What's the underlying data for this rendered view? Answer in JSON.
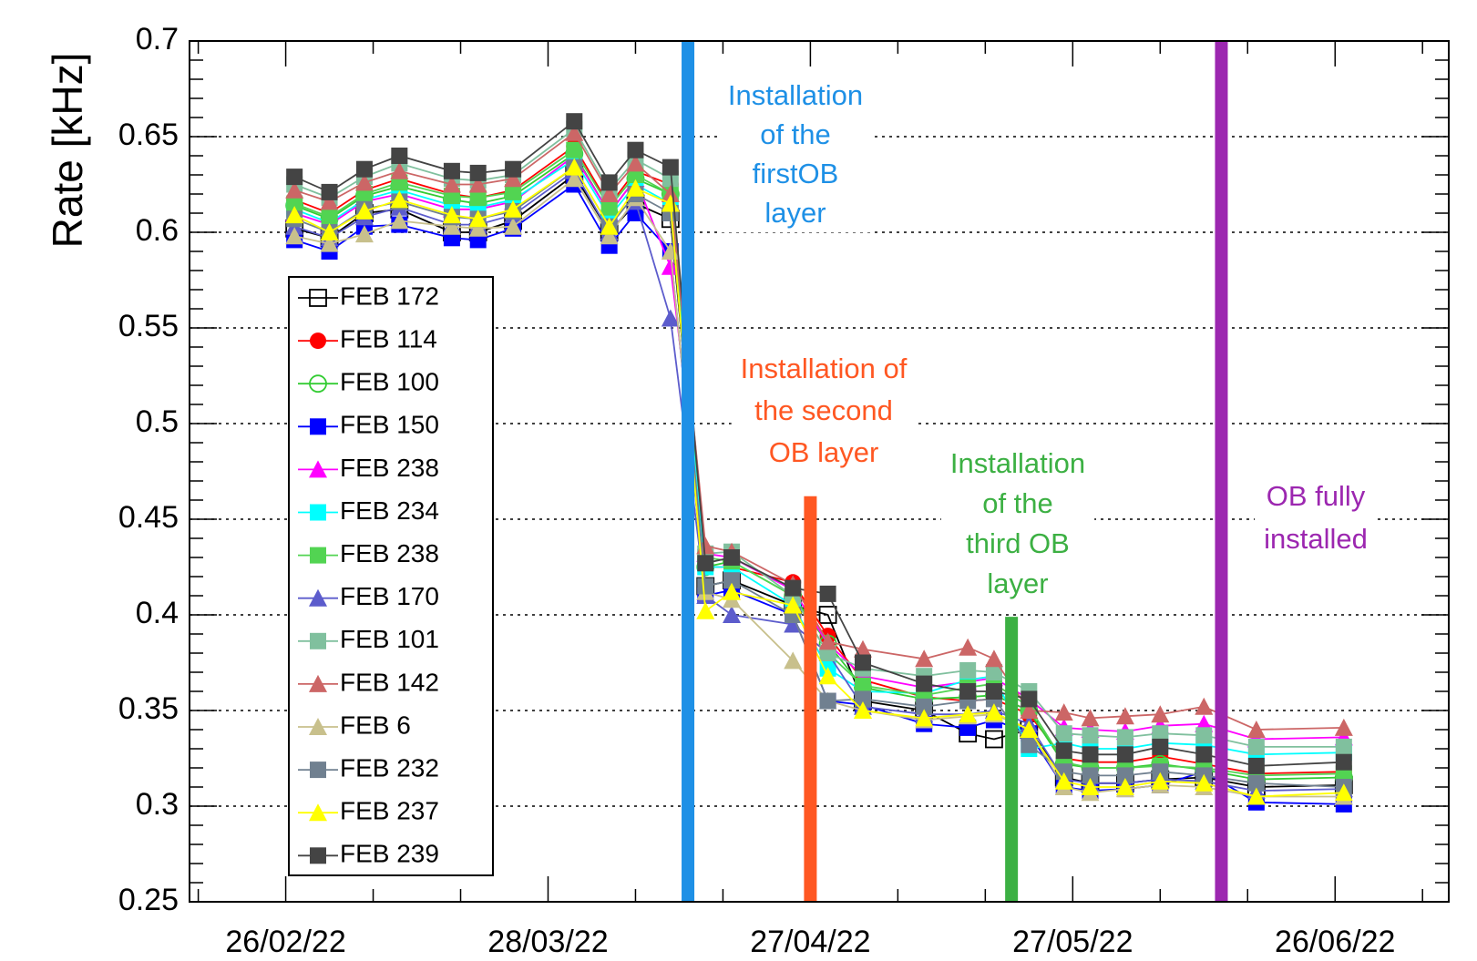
{
  "chart_data": {
    "type": "line",
    "ylabel": "Rate [kHz]",
    "ylim": [
      0.25,
      0.7
    ],
    "yticks": [
      0.25,
      0.3,
      0.35,
      0.4,
      0.45,
      0.5,
      0.55,
      0.6,
      0.65,
      0.7
    ],
    "yminorticks": [
      0.26,
      0.27,
      0.28,
      0.29,
      0.31,
      0.32,
      0.33,
      0.34,
      0.36,
      0.37,
      0.38,
      0.39,
      0.41,
      0.42,
      0.43,
      0.44,
      0.46,
      0.47,
      0.48,
      0.49,
      0.51,
      0.52,
      0.53,
      0.54,
      0.56,
      0.57,
      0.58,
      0.59,
      0.61,
      0.62,
      0.63,
      0.64,
      0.66,
      0.67,
      0.68,
      0.69
    ],
    "xlim": [
      "15/02/22",
      "09/07/22"
    ],
    "xticks": [
      "26/02/22",
      "28/03/22",
      "27/04/22",
      "27/05/22",
      "26/06/22"
    ],
    "xminorticks": [
      "16/02/22",
      "08/03/22",
      "18/03/22",
      "07/04/22",
      "17/04/22",
      "07/05/22",
      "17/05/22",
      "06/06/22",
      "16/06/22",
      "06/07/22"
    ],
    "grid": true,
    "legend": "upper left",
    "x": [
      "27/02/22",
      "03/03/22",
      "07/03/22",
      "11/03/22",
      "17/03/22",
      "20/03/22",
      "24/03/22",
      "31/03/22",
      "04/04/22",
      "07/04/22",
      "11/04/22",
      "15/04/22",
      "18/04/22",
      "25/04/22",
      "29/04/22",
      "03/05/22",
      "10/05/22",
      "15/05/22",
      "18/05/22",
      "22/05/22",
      "26/05/22",
      "29/05/22",
      "02/06/22",
      "06/06/22",
      "11/06/22",
      "17/06/22",
      "27/06/22"
    ],
    "series": [
      {
        "name": "FEB 172",
        "color": "#000000",
        "marker": "open-square",
        "values": [
          0.602,
          0.597,
          0.61,
          0.612,
          0.6,
          0.6,
          0.606,
          0.63,
          0.6,
          0.615,
          0.607,
          0.415,
          0.418,
          0.405,
          0.4,
          0.355,
          0.35,
          0.338,
          0.335,
          0.34,
          0.315,
          0.312,
          0.312,
          0.314,
          0.315,
          0.31,
          0.311
        ]
      },
      {
        "name": "FEB 114",
        "color": "#ff0000",
        "marker": "circle",
        "values": [
          0.617,
          0.61,
          0.622,
          0.628,
          0.62,
          0.618,
          0.622,
          0.645,
          0.614,
          0.632,
          0.625,
          0.425,
          0.425,
          0.417,
          0.389,
          0.366,
          0.357,
          0.355,
          0.356,
          0.348,
          0.325,
          0.323,
          0.323,
          0.326,
          0.322,
          0.317,
          0.318
        ]
      },
      {
        "name": "FEB 100",
        "color": "#33cc33",
        "marker": "open-circle",
        "values": [
          0.614,
          0.607,
          0.619,
          0.624,
          0.617,
          0.615,
          0.619,
          0.641,
          0.61,
          0.628,
          0.62,
          0.425,
          0.428,
          0.41,
          0.385,
          0.362,
          0.356,
          0.357,
          0.358,
          0.35,
          0.322,
          0.32,
          0.32,
          0.322,
          0.319,
          0.314,
          0.315
        ]
      },
      {
        "name": "FEB 150",
        "color": "#0000ff",
        "marker": "square",
        "values": [
          0.596,
          0.59,
          0.603,
          0.604,
          0.597,
          0.596,
          0.602,
          0.625,
          0.593,
          0.61,
          0.59,
          0.41,
          0.413,
          0.4,
          0.355,
          0.353,
          0.343,
          0.341,
          0.345,
          0.338,
          0.31,
          0.308,
          0.309,
          0.311,
          0.318,
          0.302,
          0.301
        ]
      },
      {
        "name": "FEB 238",
        "color": "#ff00ff",
        "marker": "triangle",
        "values": [
          0.61,
          0.604,
          0.616,
          0.62,
          0.612,
          0.612,
          0.616,
          0.64,
          0.61,
          0.628,
          0.582,
          0.432,
          0.43,
          0.413,
          0.385,
          0.368,
          0.362,
          0.365,
          0.367,
          0.356,
          0.341,
          0.34,
          0.339,
          0.342,
          0.343,
          0.335,
          0.336
        ]
      },
      {
        "name": "FEB 234",
        "color": "#00ffff",
        "marker": "square",
        "values": [
          0.612,
          0.605,
          0.617,
          0.622,
          0.614,
          0.613,
          0.617,
          0.638,
          0.608,
          0.625,
          0.615,
          0.425,
          0.425,
          0.405,
          0.372,
          0.36,
          0.359,
          0.366,
          0.368,
          0.33,
          0.333,
          0.33,
          0.33,
          0.333,
          0.332,
          0.327,
          0.328
        ]
      },
      {
        "name": "FEB 238",
        "color": "#52d452",
        "marker": "square",
        "values": [
          0.615,
          0.608,
          0.62,
          0.626,
          0.619,
          0.618,
          0.621,
          0.643,
          0.613,
          0.63,
          0.62,
          0.43,
          0.428,
          0.41,
          0.38,
          0.363,
          0.358,
          0.362,
          0.364,
          0.352,
          0.323,
          0.32,
          0.32,
          0.321,
          0.32,
          0.316,
          0.317
        ]
      },
      {
        "name": "FEB 170",
        "color": "#5c5ccc",
        "marker": "triangle",
        "values": [
          0.603,
          0.597,
          0.608,
          0.613,
          0.604,
          0.604,
          0.609,
          0.632,
          0.6,
          0.616,
          0.555,
          0.41,
          0.4,
          0.395,
          0.38,
          0.352,
          0.348,
          0.348,
          0.35,
          0.343,
          0.314,
          0.312,
          0.312,
          0.314,
          0.313,
          0.308,
          0.309
        ]
      },
      {
        "name": "FEB 101",
        "color": "#80c09e",
        "marker": "square",
        "values": [
          0.625,
          0.618,
          0.629,
          0.636,
          0.628,
          0.627,
          0.63,
          0.654,
          0.622,
          0.638,
          0.628,
          0.432,
          0.433,
          0.41,
          0.38,
          0.372,
          0.368,
          0.371,
          0.37,
          0.36,
          0.338,
          0.337,
          0.336,
          0.338,
          0.337,
          0.331,
          0.331
        ]
      },
      {
        "name": "FEB 142",
        "color": "#cc6666",
        "marker": "triangle",
        "values": [
          0.622,
          0.616,
          0.626,
          0.632,
          0.625,
          0.625,
          0.628,
          0.652,
          0.62,
          0.636,
          0.62,
          0.436,
          0.433,
          0.416,
          0.386,
          0.382,
          0.377,
          0.383,
          0.377,
          0.35,
          0.349,
          0.346,
          0.347,
          0.348,
          0.352,
          0.34,
          0.341
        ]
      },
      {
        "name": "FEB 6",
        "color": "#c8c08c",
        "marker": "triangle",
        "values": [
          0.598,
          0.594,
          0.599,
          0.606,
          0.603,
          0.602,
          0.603,
          0.628,
          0.598,
          0.618,
          0.59,
          0.412,
          0.408,
          0.376,
          0.355,
          0.35,
          0.345,
          0.347,
          0.348,
          0.34,
          0.31,
          0.307,
          0.309,
          0.311,
          0.31,
          0.305,
          0.305
        ]
      },
      {
        "name": "FEB 232",
        "color": "#708090",
        "marker": "square",
        "values": [
          0.607,
          0.6,
          0.612,
          0.616,
          0.608,
          0.607,
          0.611,
          0.634,
          0.603,
          0.62,
          0.61,
          0.415,
          0.418,
          0.4,
          0.355,
          0.356,
          0.352,
          0.355,
          0.356,
          0.332,
          0.318,
          0.316,
          0.316,
          0.318,
          0.316,
          0.312,
          0.31
        ]
      },
      {
        "name": "FEB 237",
        "color": "#ffff00",
        "marker": "triangle",
        "values": [
          0.609,
          0.6,
          0.611,
          0.617,
          0.609,
          0.607,
          0.612,
          0.634,
          0.603,
          0.623,
          0.615,
          0.402,
          0.412,
          0.405,
          0.368,
          0.35,
          0.346,
          0.348,
          0.349,
          0.34,
          0.313,
          0.31,
          0.31,
          0.313,
          0.312,
          0.305,
          0.307
        ]
      },
      {
        "name": "FEB 239",
        "color": "#444444",
        "marker": "square",
        "values": [
          0.629,
          0.621,
          0.633,
          0.64,
          0.632,
          0.631,
          0.633,
          0.658,
          0.626,
          0.643,
          0.634,
          0.427,
          0.43,
          0.414,
          0.411,
          0.375,
          0.364,
          0.36,
          0.36,
          0.356,
          0.329,
          0.327,
          0.327,
          0.331,
          0.327,
          0.321,
          0.323
        ]
      }
    ],
    "annotations": [
      {
        "x": "13/04/22",
        "ymax": 0.7,
        "color": "#1e90e6",
        "lines": [
          "Installation",
          "of the",
          "firstOB",
          "layer"
        ]
      },
      {
        "x": "27/04/22",
        "ymax": 0.462,
        "color": "#ff5722",
        "lines": [
          "Installation of",
          "the second",
          "OB layer"
        ]
      },
      {
        "x": "20/05/22",
        "ymax": 0.399,
        "color": "#3cb043",
        "lines": [
          "Installation",
          "of the",
          "third OB",
          "layer"
        ]
      },
      {
        "x": "13/06/22",
        "ymax": 0.7,
        "color": "#9c27b0",
        "lines": [
          "OB fully",
          "installed"
        ]
      }
    ]
  }
}
